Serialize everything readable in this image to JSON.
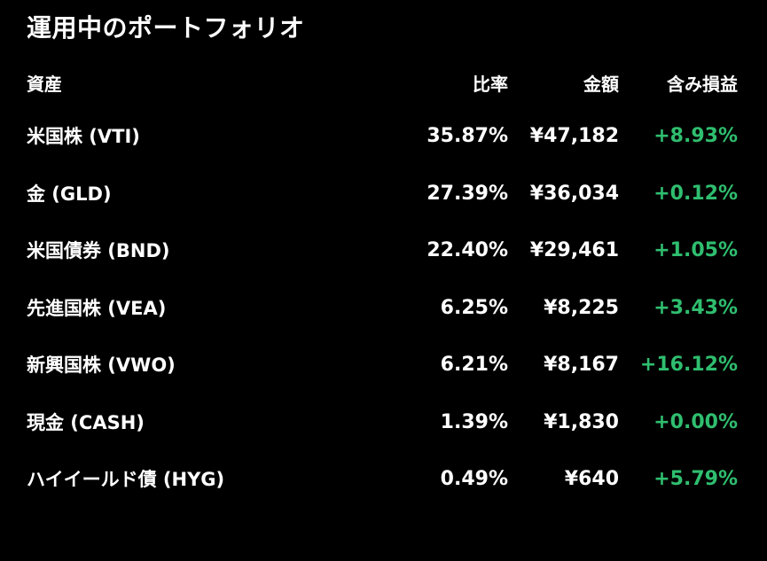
{
  "title": "運用中のポートフォリオ",
  "header": {
    "asset": "資産",
    "ratio": "比率",
    "amount": "金額",
    "pl": "含み損益"
  },
  "rows": [
    {
      "asset": "米国株 (VTI)",
      "ratio": "35.87%",
      "amount": "¥47,182",
      "pl": "+8.93%"
    },
    {
      "asset": "金 (GLD)",
      "ratio": "27.39%",
      "amount": "¥36,034",
      "pl": "+0.12%"
    },
    {
      "asset": "米国債券 (BND)",
      "ratio": "22.40%",
      "amount": "¥29,461",
      "pl": "+1.05%"
    },
    {
      "asset": "先進国株 (VEA)",
      "ratio": "6.25%",
      "amount": "¥8,225",
      "pl": "+3.43%"
    },
    {
      "asset": "新興国株 (VWO)",
      "ratio": "6.21%",
      "amount": "¥8,167",
      "pl": "+16.12%"
    },
    {
      "asset": "現金 (CASH)",
      "ratio": "1.39%",
      "amount": "¥1,830",
      "pl": "+0.00%"
    },
    {
      "asset": "ハイイールド債 (HYG)",
      "ratio": "0.49%",
      "amount": "¥640",
      "pl": "+5.79%"
    }
  ],
  "colors": {
    "background": "#000000",
    "text": "#ffffff",
    "positive": "#2fbe6f"
  }
}
